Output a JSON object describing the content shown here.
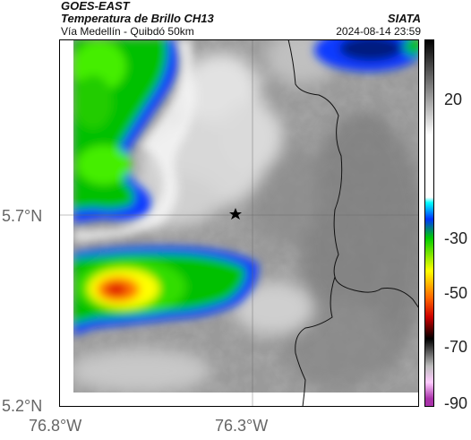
{
  "header": {
    "satellite": "GOES-EAST",
    "product": "Temperatura de Brillo CH13",
    "route": "Vía Medellín - Quibdó 50km",
    "organization": "SIATA",
    "timestamp": "2024-08-14 23:59"
  },
  "map": {
    "lat_ticks": [
      "5.7°N",
      "5.2°N"
    ],
    "lon_ticks": [
      "76.8°W",
      "76.3°W"
    ],
    "marker_icon": "star-icon",
    "extent": {
      "lon_min": -76.83,
      "lon_max": -75.85,
      "lat_min": 5.2,
      "lat_max": 6.2
    }
  },
  "colorbar": {
    "tick_labels": [
      "20",
      "-30",
      "-50",
      "-70",
      "-90"
    ],
    "range": [
      -95,
      40
    ],
    "stops": [
      {
        "value": 40,
        "color": "#000000"
      },
      {
        "value": 5,
        "color": "#ffffff"
      },
      {
        "value": -18,
        "color": "#ffffff"
      },
      {
        "value": -20,
        "color": "#00ffff"
      },
      {
        "value": -26,
        "color": "#0033ff"
      },
      {
        "value": -33,
        "color": "#00cc00"
      },
      {
        "value": -45,
        "color": "#ffff00"
      },
      {
        "value": -55,
        "color": "#ff6600"
      },
      {
        "value": -62,
        "color": "#cc0000"
      },
      {
        "value": -70,
        "color": "#000000"
      },
      {
        "value": -80,
        "color": "#bbbbbb"
      },
      {
        "value": -86,
        "color": "#ffccff"
      },
      {
        "value": -92,
        "color": "#aa33aa"
      }
    ]
  }
}
